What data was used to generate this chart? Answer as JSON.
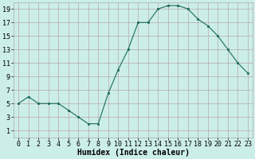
{
  "x": [
    0,
    1,
    2,
    3,
    4,
    5,
    6,
    7,
    8,
    9,
    10,
    11,
    12,
    13,
    14,
    15,
    16,
    17,
    18,
    19,
    20,
    21,
    22,
    23
  ],
  "y": [
    5,
    6,
    5,
    5,
    5,
    4,
    3,
    2,
    2,
    6.5,
    10,
    13,
    17,
    17,
    19,
    19.5,
    19.5,
    19,
    17.5,
    16.5,
    15,
    13,
    11,
    9.5
  ],
  "line_color": "#1a6b5a",
  "marker": "s",
  "marker_size": 2,
  "bg_color": "#cceee8",
  "grid_color": "#b8a8a8",
  "xlabel": "Humidex (Indice chaleur)",
  "xlim": [
    -0.5,
    23.5
  ],
  "ylim": [
    0,
    20
  ],
  "yticks": [
    1,
    3,
    5,
    7,
    9,
    11,
    13,
    15,
    17,
    19
  ],
  "xticks": [
    0,
    1,
    2,
    3,
    4,
    5,
    6,
    7,
    8,
    9,
    10,
    11,
    12,
    13,
    14,
    15,
    16,
    17,
    18,
    19,
    20,
    21,
    22,
    23
  ],
  "font_size": 6,
  "xlabel_fontsize": 7
}
